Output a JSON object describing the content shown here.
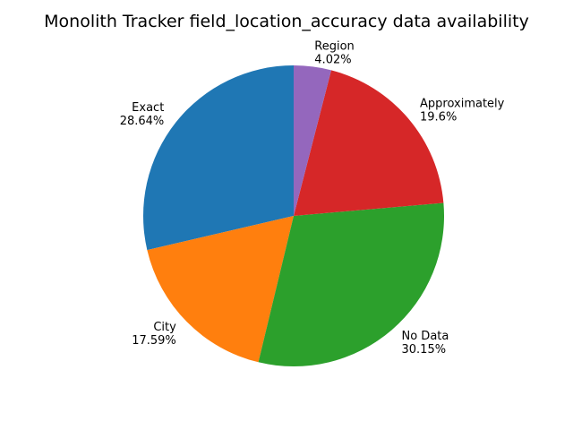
{
  "chart_data": {
    "type": "pie",
    "title": "Monolith Tracker field_location_accuracy data availability",
    "start_angle_deg": 90,
    "direction": "counterclockwise",
    "slices": [
      {
        "label": "Exact",
        "value": 28.64,
        "pct_label": "28.64%",
        "color": "#1f77b4"
      },
      {
        "label": "City",
        "value": 17.59,
        "pct_label": "17.59%",
        "color": "#ff7f0e"
      },
      {
        "label": "No Data",
        "value": 30.15,
        "pct_label": "30.15%",
        "color": "#2ca02c"
      },
      {
        "label": "Approximately",
        "value": 19.6,
        "pct_label": "19.6%",
        "color": "#d62728"
      },
      {
        "label": "Region",
        "value": 4.02,
        "pct_label": "4.02%",
        "color": "#9467bd"
      }
    ]
  }
}
